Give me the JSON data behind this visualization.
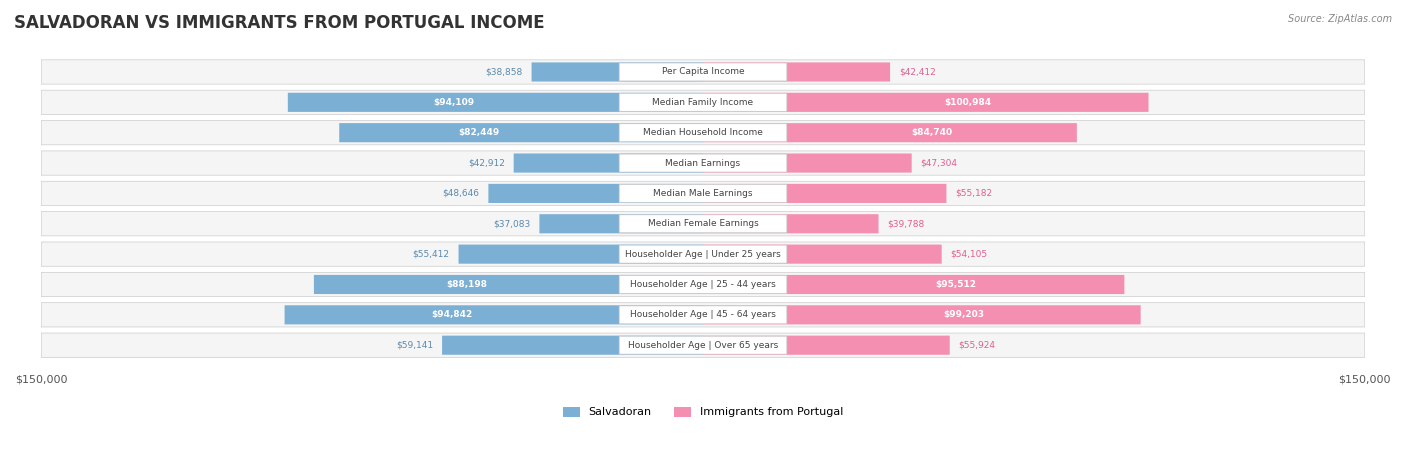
{
  "title": "SALVADORAN VS IMMIGRANTS FROM PORTUGAL INCOME",
  "source": "Source: ZipAtlas.com",
  "categories": [
    "Per Capita Income",
    "Median Family Income",
    "Median Household Income",
    "Median Earnings",
    "Median Male Earnings",
    "Median Female Earnings",
    "Householder Age | Under 25 years",
    "Householder Age | 25 - 44 years",
    "Householder Age | 45 - 64 years",
    "Householder Age | Over 65 years"
  ],
  "salvadoran": [
    38858,
    94109,
    82449,
    42912,
    48646,
    37083,
    55412,
    88198,
    94842,
    59141
  ],
  "portugal": [
    42412,
    100984,
    84740,
    47304,
    55182,
    39788,
    54105,
    95512,
    99203,
    55924
  ],
  "salvadoran_labels": [
    "$38,858",
    "$94,109",
    "$82,449",
    "$42,912",
    "$48,646",
    "$37,083",
    "$55,412",
    "$88,198",
    "$94,842",
    "$59,141"
  ],
  "portugal_labels": [
    "$42,412",
    "$100,984",
    "$84,740",
    "$47,304",
    "$55,182",
    "$39,788",
    "$54,105",
    "$95,512",
    "$99,203",
    "$55,924"
  ],
  "max_val": 150000,
  "blue_color": "#7bafd4",
  "pink_color": "#f48fb1",
  "blue_text_color": "#5a8ab0",
  "pink_text_color": "#e06090",
  "white_text": "#ffffff",
  "dark_text": "#555555",
  "bg_row_color": "#f0f0f0",
  "label_bg_color": "#ffffff",
  "legend_blue": "#7bafd4",
  "legend_pink": "#f48fb1"
}
